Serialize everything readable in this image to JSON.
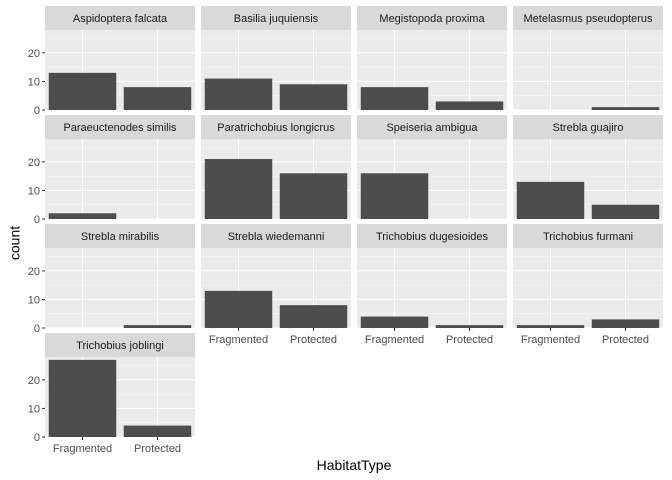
{
  "chart_data": {
    "type": "bar",
    "xlabel": "HabitatType",
    "ylabel": "count",
    "categories": [
      "Fragmented",
      "Protected"
    ],
    "ylim": [
      0,
      28
    ],
    "yticks": [
      0,
      10,
      20
    ],
    "facets": [
      {
        "name": "Aspidoptera falcata",
        "values": [
          13,
          8
        ]
      },
      {
        "name": "Basilia juquiensis",
        "values": [
          11,
          9
        ]
      },
      {
        "name": "Megistopoda proxima",
        "values": [
          8,
          3
        ]
      },
      {
        "name": "Metelasmus pseudopterus",
        "values": [
          0,
          1
        ]
      },
      {
        "name": "Paraeuctenodes similis",
        "values": [
          2,
          0
        ]
      },
      {
        "name": "Paratrichobius longicrus",
        "values": [
          21,
          16
        ]
      },
      {
        "name": "Speiseria ambigua",
        "values": [
          16,
          0
        ]
      },
      {
        "name": "Strebla guajiro",
        "values": [
          13,
          5
        ]
      },
      {
        "name": "Strebla mirabilis",
        "values": [
          0,
          1
        ]
      },
      {
        "name": "Strebla wiedemanni",
        "values": [
          13,
          8
        ]
      },
      {
        "name": "Trichobius dugesioides",
        "values": [
          4,
          1
        ]
      },
      {
        "name": "Trichobius furmani",
        "values": [
          1,
          3
        ]
      },
      {
        "name": "Trichobius joblingi",
        "values": [
          27,
          4
        ]
      }
    ],
    "colors": {
      "bar": "#4D4D4D",
      "panel": "#EBEBEB",
      "strip": "#D9D9D9",
      "grid": "#FFFFFF"
    },
    "grid": true,
    "legend": "none"
  }
}
